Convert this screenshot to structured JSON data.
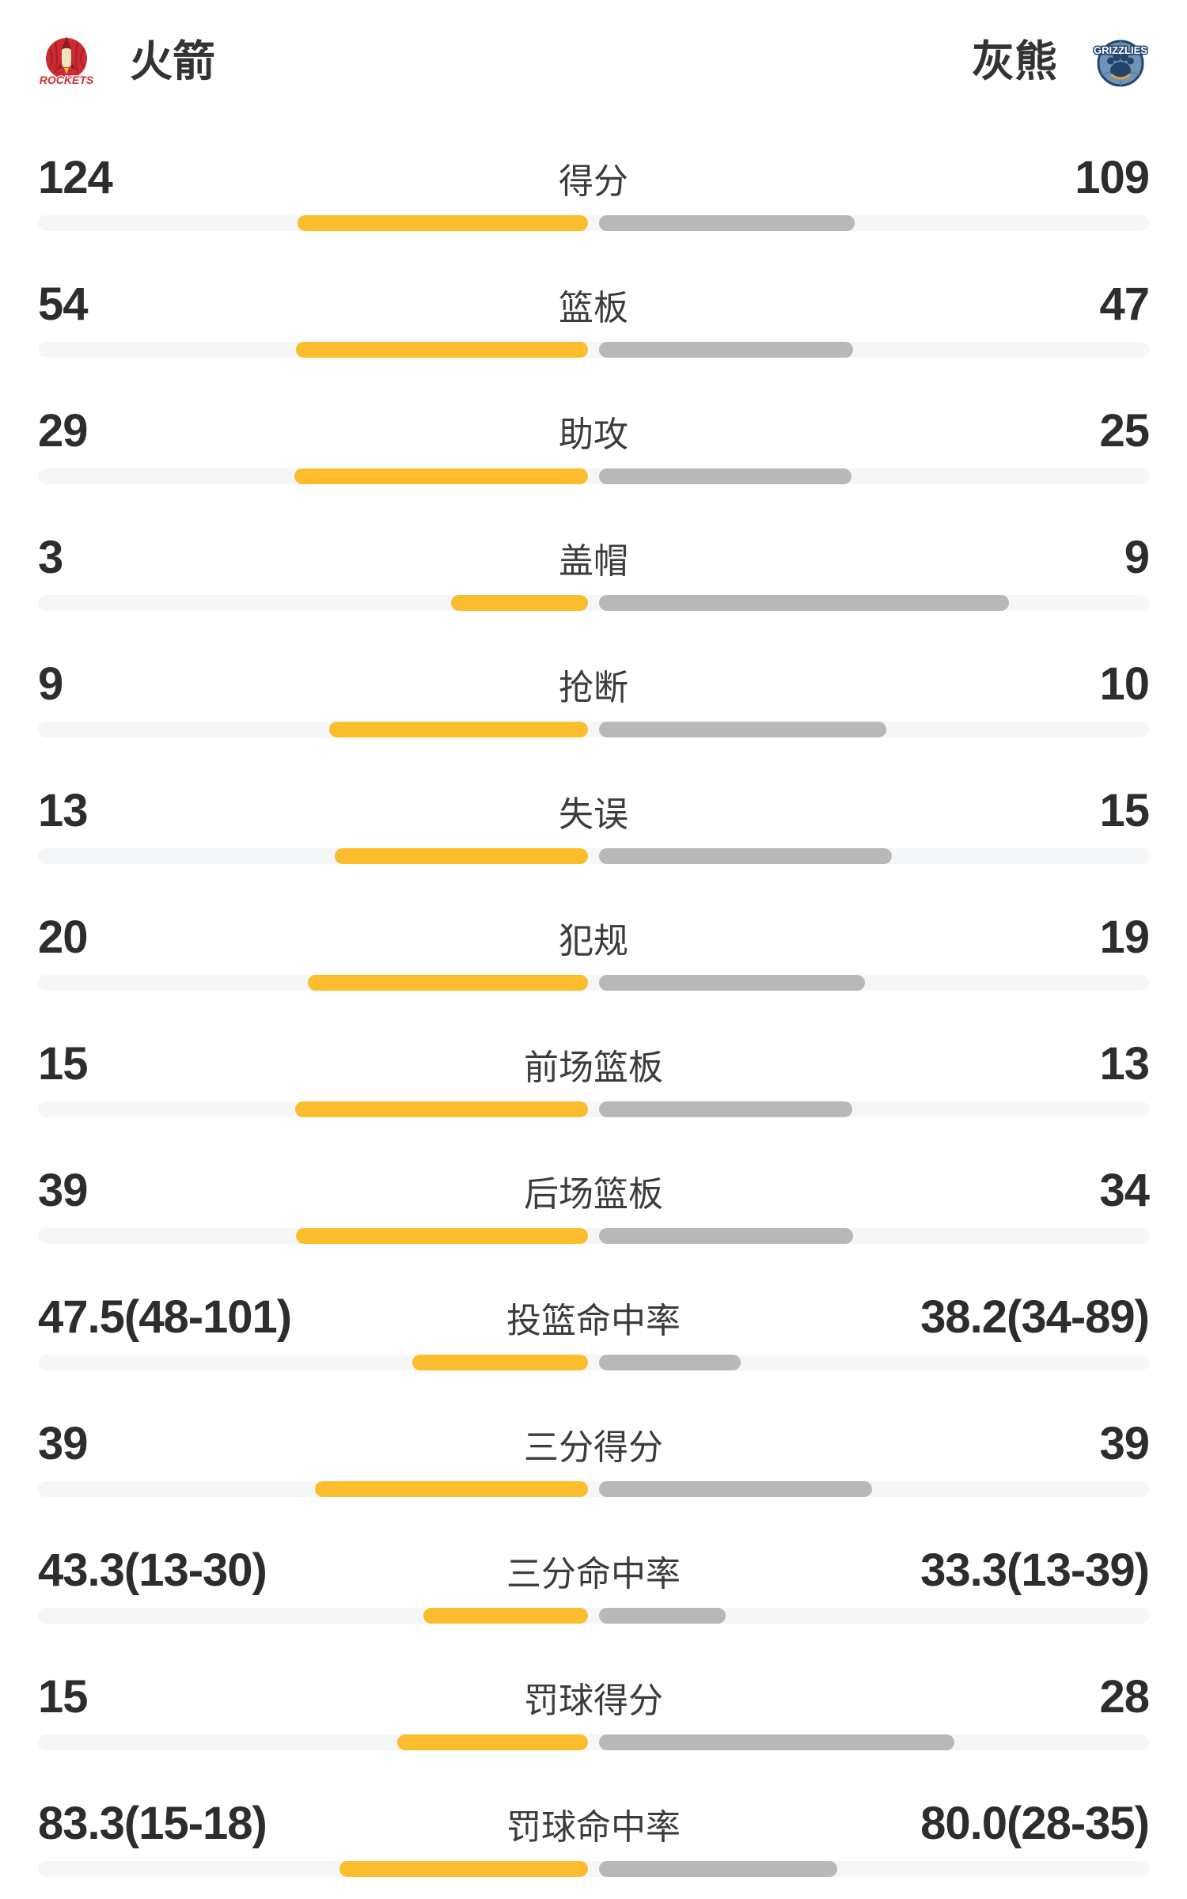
{
  "colors": {
    "home_fill": "#fbbd2e",
    "away_fill": "#b8b8b8",
    "bar_track": "#f4f6f8",
    "value_text": "#2d2d2d",
    "label_text": "#3c3c3c",
    "team_text": "#333333",
    "rockets_red": "#cd2a31",
    "rockets_dark_red": "#a82027",
    "rockets_cream": "#f2e3bc",
    "grizzlies_blue": "#7193ba",
    "grizzlies_navy": "#24456b",
    "grizzlies_gold": "#d9a441"
  },
  "logos": {
    "home": "ROCKETS",
    "away": "GRIZZLIES"
  },
  "chart_data": {
    "type": "bar",
    "layout": "paired-horizontal-comparison",
    "legend_position": "header",
    "series": [
      {
        "name": "火箭",
        "color": "#fbbd2e",
        "side": "left"
      },
      {
        "name": "灰熊",
        "color": "#b8b8b8",
        "side": "right"
      }
    ],
    "rows": [
      {
        "label": "得分",
        "home": "124",
        "away": "109",
        "home_val": 124,
        "away_val": 109,
        "is_pct": false
      },
      {
        "label": "篮板",
        "home": "54",
        "away": "47",
        "home_val": 54,
        "away_val": 47,
        "is_pct": false
      },
      {
        "label": "助攻",
        "home": "29",
        "away": "25",
        "home_val": 29,
        "away_val": 25,
        "is_pct": false
      },
      {
        "label": "盖帽",
        "home": "3",
        "away": "9",
        "home_val": 3,
        "away_val": 9,
        "is_pct": false
      },
      {
        "label": "抢断",
        "home": "9",
        "away": "10",
        "home_val": 9,
        "away_val": 10,
        "is_pct": false
      },
      {
        "label": "失误",
        "home": "13",
        "away": "15",
        "home_val": 13,
        "away_val": 15,
        "is_pct": false
      },
      {
        "label": "犯规",
        "home": "20",
        "away": "19",
        "home_val": 20,
        "away_val": 19,
        "is_pct": false
      },
      {
        "label": "前场篮板",
        "home": "15",
        "away": "13",
        "home_val": 15,
        "away_val": 13,
        "is_pct": false
      },
      {
        "label": "后场篮板",
        "home": "39",
        "away": "34",
        "home_val": 39,
        "away_val": 34,
        "is_pct": false
      },
      {
        "label": "投篮命中率",
        "home": "47.5(48-101)",
        "away": "38.2(34-89)",
        "home_val": 47.5,
        "away_val": 38.2,
        "is_pct": true
      },
      {
        "label": "三分得分",
        "home": "39",
        "away": "39",
        "home_val": 39,
        "away_val": 39,
        "is_pct": false
      },
      {
        "label": "三分命中率",
        "home": "43.3(13-30)",
        "away": "33.3(13-39)",
        "home_val": 43.3,
        "away_val": 33.3,
        "is_pct": true
      },
      {
        "label": "罚球得分",
        "home": "15",
        "away": "28",
        "home_val": 15,
        "away_val": 28,
        "is_pct": false
      },
      {
        "label": "罚球命中率",
        "home": "83.3(15-18)",
        "away": "80.0(28-35)",
        "home_val": 83.3,
        "away_val": 80.0,
        "is_pct": true
      }
    ]
  }
}
